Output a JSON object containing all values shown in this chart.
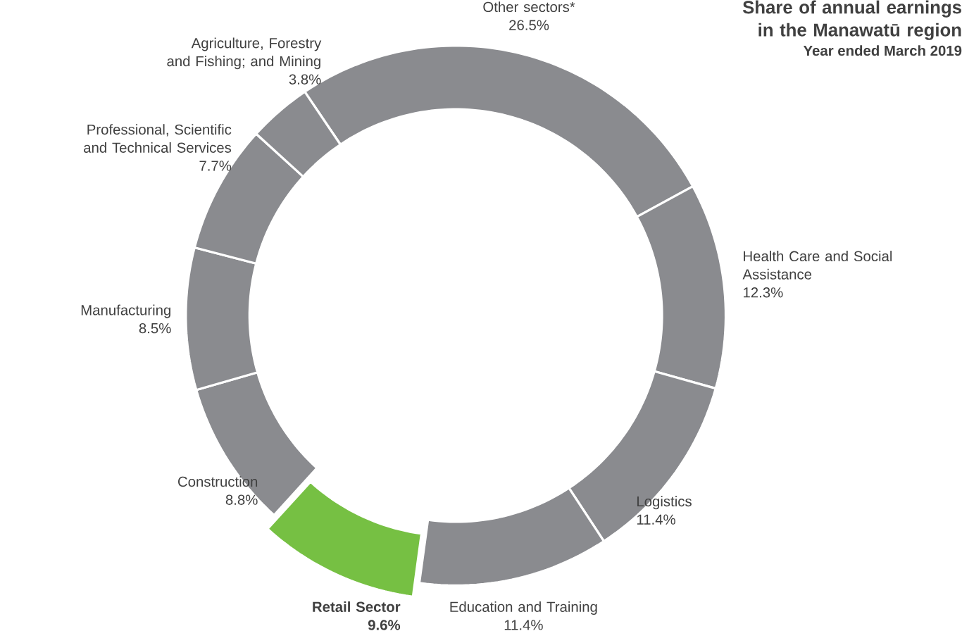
{
  "chart_data": {
    "type": "donut",
    "title": "Share of annual earnings in the Manawatū region",
    "subtitle": "Year ended March 2019",
    "categories": [
      "Other sectors*",
      "Health Care and Social Assistance",
      "Logistics",
      "Education and Training",
      "Retail Sector",
      "Construction",
      "Manufacturing",
      "Professional, Scientific and Technical Services",
      "Agriculture, Forestry and Fishing; and Mining"
    ],
    "values": [
      26.5,
      12.3,
      11.4,
      11.4,
      9.6,
      8.8,
      8.5,
      7.7,
      3.8
    ],
    "value_labels": [
      "26.5%",
      "12.3%",
      "11.4%",
      "11.4%",
      "9.6%",
      "8.8%",
      "8.5%",
      "7.7%",
      "3.8%"
    ],
    "colors": [
      "#8a8b8f",
      "#8a8b8f",
      "#8a8b8f",
      "#8a8b8f",
      "#76c043",
      "#8a8b8f",
      "#8a8b8f",
      "#8a8b8f",
      "#8a8b8f"
    ]
  }
}
